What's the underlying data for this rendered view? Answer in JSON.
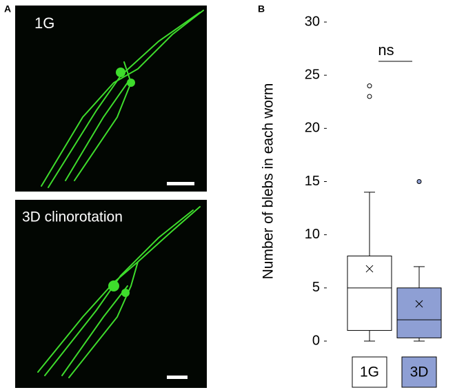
{
  "panel_labels": [
    "A",
    "B"
  ],
  "images": [
    {
      "label": "1G"
    },
    {
      "label": "3D clinorotation"
    }
  ],
  "chart_data": {
    "type": "box",
    "ylabel": "Number of blebs in each worm",
    "ylim": [
      0,
      30
    ],
    "yticks": [
      0,
      5,
      10,
      15,
      20,
      25,
      30
    ],
    "annotation": "ns",
    "series": [
      {
        "name": "1G",
        "color": "#ffffff",
        "min": 0,
        "q1": 1,
        "median": 5,
        "q3": 8,
        "max": 14,
        "mean": 6.8,
        "outliers": [
          24,
          23
        ]
      },
      {
        "name": "3D",
        "color": "#8e9fd4",
        "min": 0,
        "q1": 0.3,
        "median": 2,
        "q3": 5,
        "max": 7,
        "mean": 3.5,
        "outliers": [
          15
        ]
      }
    ]
  }
}
